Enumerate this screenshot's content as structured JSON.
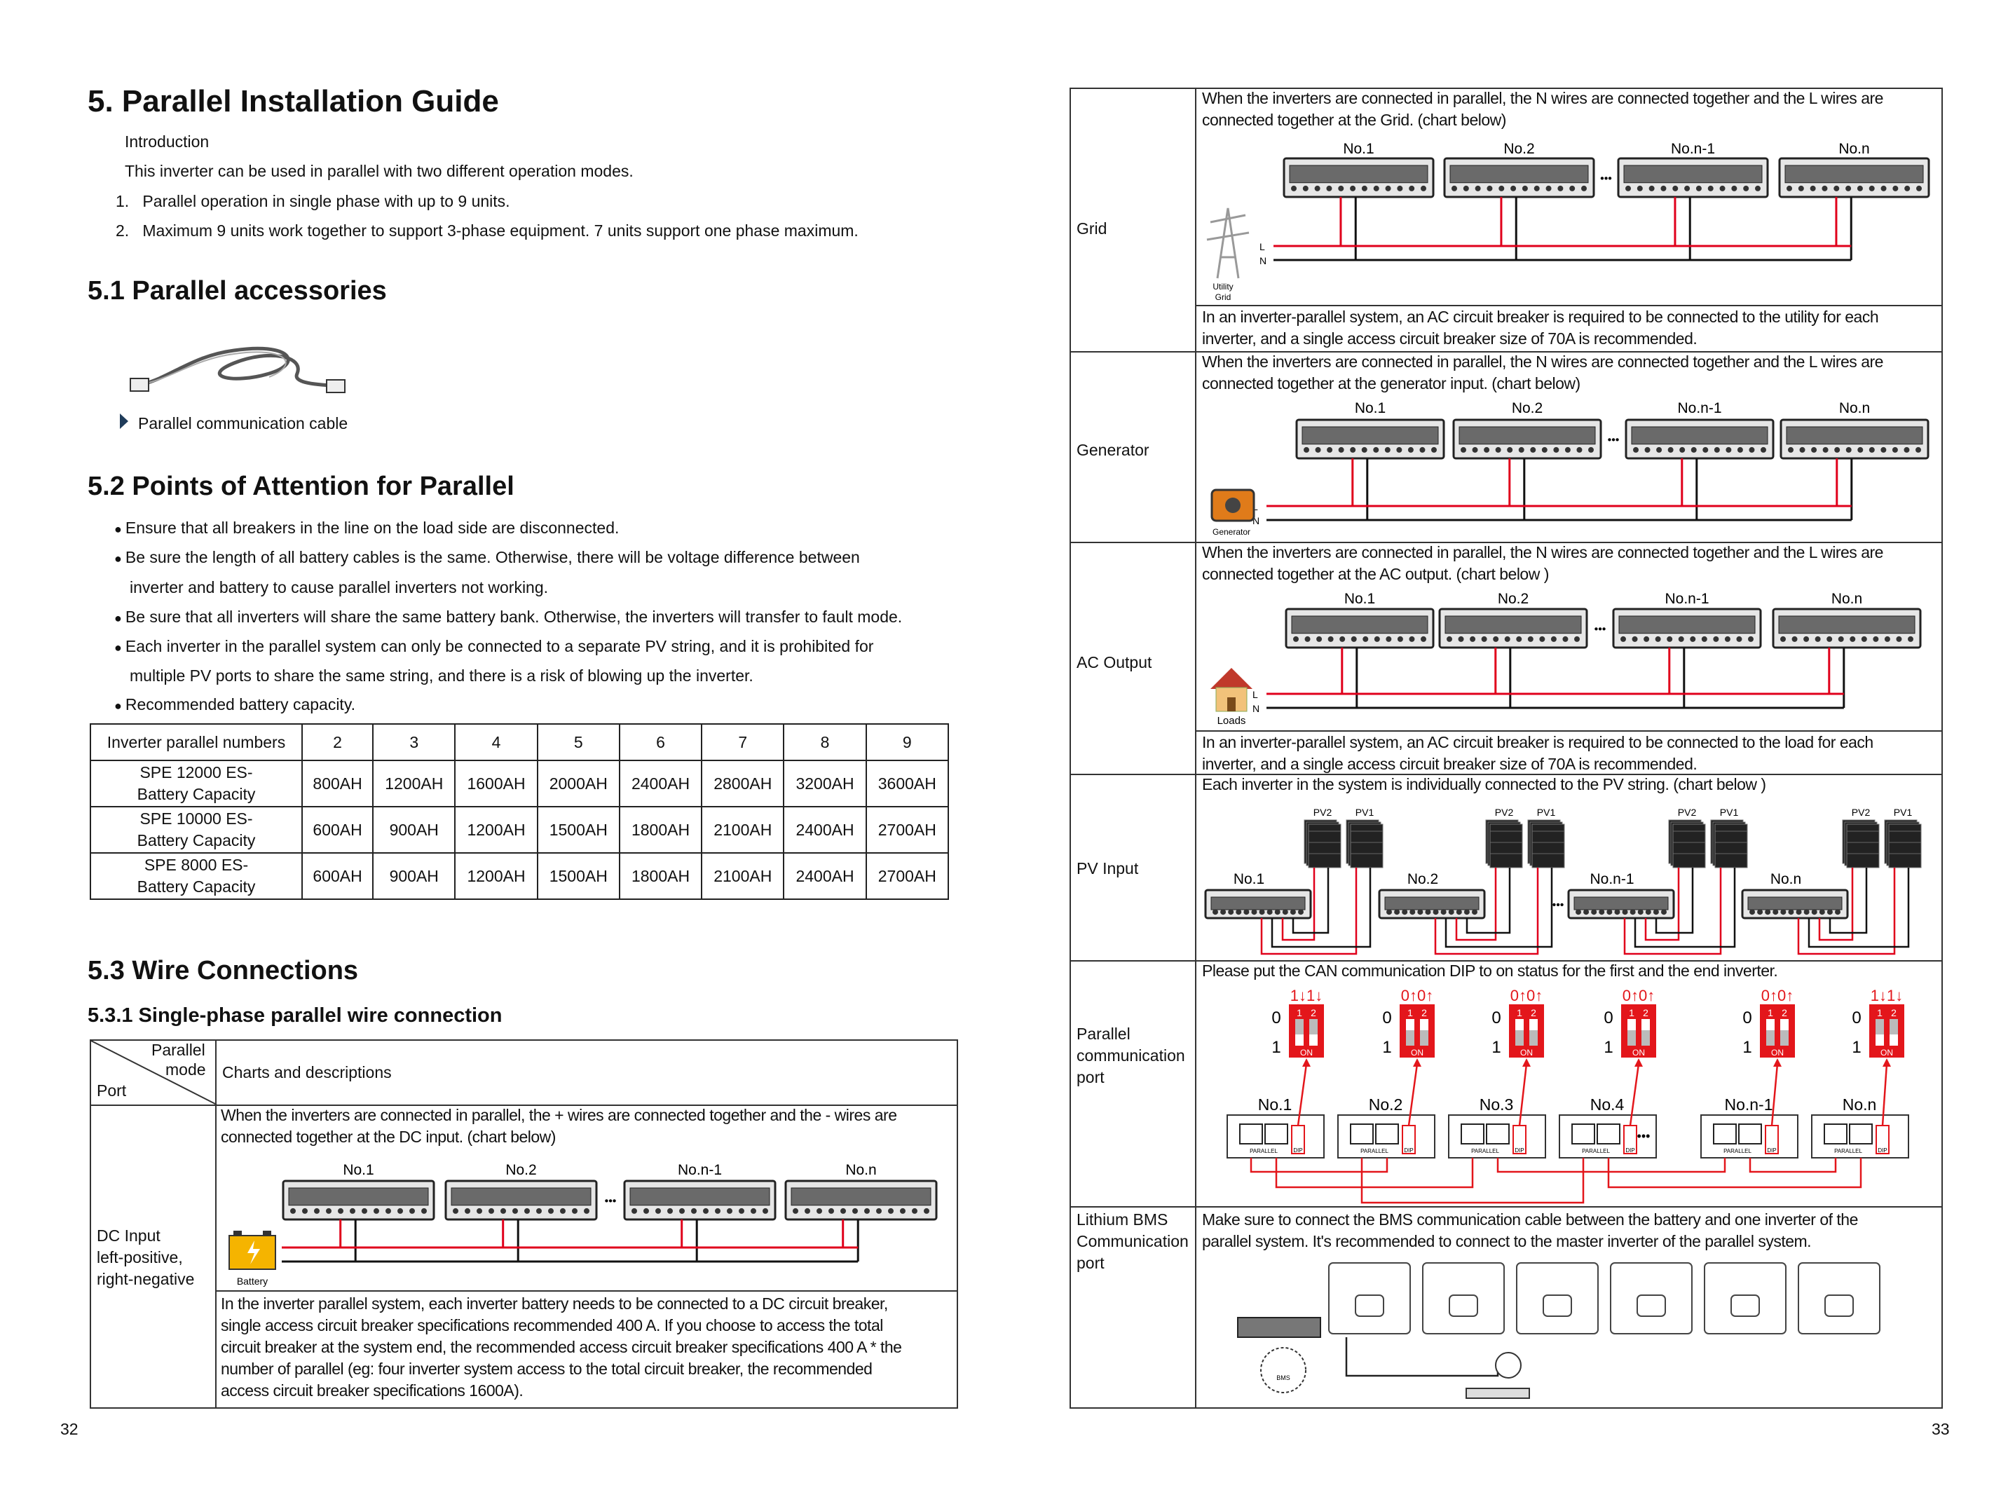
{
  "left_page": {
    "title": "5. Parallel Installation Guide",
    "intro_heading": "Introduction",
    "intro_text": "This inverter can be used in parallel with two different operation modes.",
    "modes": [
      {
        "num": "1.",
        "text": "Parallel operation in single phase with up to 9 units."
      },
      {
        "num": "2.",
        "text": "Maximum 9 units work together to support 3-phase equipment. 7 units support one phase maximum."
      }
    ],
    "s51_title": "5.1 Parallel accessories",
    "accessory_label": "Parallel communication cable",
    "s52_title": "5.2 Points of Attention for Parallel",
    "bullets": [
      "Ensure that all breakers in the line on the load side are disconnected.",
      "Be sure the length of all battery cables is the same. Otherwise, there will be voltage difference between",
      "inverter and battery to cause parallel inverters not working.",
      "Be sure that all inverters will share the same battery bank. Otherwise, the inverters will transfer to fault mode.",
      "Each inverter in the parallel system can only be connected to a separate PV string, and it is prohibited for",
      "multiple PV ports to share the same string, and there is a risk of blowing up the inverter.",
      "Recommended battery capacity."
    ],
    "capacity_table": {
      "header": [
        "Inverter parallel numbers",
        "2",
        "3",
        "4",
        "5",
        "6",
        "7",
        "8",
        "9"
      ],
      "rows": [
        {
          "model1": "SPE 12000 ES-",
          "model2": "Battery Capacity",
          "values": [
            "800AH",
            "1200AH",
            "1600AH",
            "2000AH",
            "2400AH",
            "2800AH",
            "3200AH",
            "3600AH"
          ]
        },
        {
          "model1": "SPE 10000 ES-",
          "model2": "Battery Capacity",
          "values": [
            "600AH",
            "900AH",
            "1200AH",
            "1500AH",
            "1800AH",
            "2100AH",
            "2400AH",
            "2700AH"
          ]
        },
        {
          "model1": "SPE 8000 ES-",
          "model2": "Battery Capacity",
          "values": [
            "600AH",
            "900AH",
            "1200AH",
            "1500AH",
            "1800AH",
            "2100AH",
            "2400AH",
            "2700AH"
          ]
        }
      ]
    },
    "s53_title": "5.3 Wire Connections",
    "s531_title": "5.3.1 Single-phase parallel wire connection",
    "wire_table": {
      "corner_top1": "Parallel",
      "corner_top2": "mode",
      "corner_bottom": "Port",
      "header": "Charts and descriptions",
      "dc": {
        "label": [
          "DC Input",
          "left-positive,",
          "right-negative"
        ],
        "text": [
          "When the inverters are connected in parallel, the + wires are connected together and the - wires are",
          "connected together at the DC input. (chart below)"
        ],
        "battery_label": "Battery",
        "note": [
          "In the inverter parallel system, each inverter battery needs to be connected to a DC circuit breaker,",
          "single access circuit breaker specifications recommended 400 A. If you choose to access the total",
          "circuit breaker at the system end, the recommended access circuit breaker specifications 400 A * the",
          "number of parallel (eg: four inverter system access to the total circuit breaker, the recommended",
          "access circuit breaker specifications 1600A)."
        ]
      }
    },
    "page_number": "32"
  },
  "inverter_labels": [
    "No.1",
    "No.2",
    "No.n-1",
    "No.n"
  ],
  "dots": "•••",
  "wire_letters": {
    "l": "L",
    "n": "N"
  },
  "right_page": {
    "grid": {
      "label": "Grid",
      "text": [
        "When the inverters are connected in parallel, the N wires are connected together and the L wires are",
        "connected together at the Grid. (chart below)"
      ],
      "source_label": [
        "Utility",
        "Grid"
      ],
      "note": [
        "In an inverter-parallel system, an AC circuit breaker is required to be connected to the utility for each",
        "inverter, and a single access circuit breaker size of 70A is recommended."
      ]
    },
    "generator": {
      "label": "Generator",
      "text": [
        "When the inverters are connected in parallel, the N wires are connected together and the L wires are",
        "connected together at the generator input. (chart below)"
      ],
      "source_label": "Generator"
    },
    "ac_output": {
      "label": "AC Output",
      "text": [
        "When the inverters are connected in parallel, the N wires are connected together and the L wires are",
        "connected together at the AC output. (chart below )"
      ],
      "source_label": "Loads",
      "note": [
        "In an inverter-parallel system, an AC circuit breaker is required to be connected to the load for each",
        "inverter, and a single access circuit breaker size of 70A is recommended."
      ]
    },
    "pv_input": {
      "label": "PV Input",
      "text": "Each inverter in the system is individually connected to the PV string. (chart below )",
      "pv_labels": [
        "PV2",
        "PV1"
      ]
    },
    "parallel_port": {
      "label": [
        "Parallel",
        "communication",
        "port"
      ],
      "text": "Please put the CAN communication DIP to on status for the first and the end inverter.",
      "units": [
        {
          "name": "No.1",
          "dip": "1↓1↓",
          "on": true
        },
        {
          "name": "No.2",
          "dip": "0↑0↑",
          "on": false
        },
        {
          "name": "No.3",
          "dip": "0↑0↑",
          "on": false
        },
        {
          "name": "No.4",
          "dip": "0↑0↑",
          "on": false
        },
        {
          "name": "No.n-1",
          "dip": "0↑0↑",
          "on": false
        },
        {
          "name": "No.n",
          "dip": "1↓1↓",
          "on": true
        }
      ],
      "dip_pos_labels": [
        "0",
        "1"
      ],
      "dip_switch_nums": [
        "1",
        "2"
      ],
      "dip_on": "ON",
      "port_caption": "PARALLEL",
      "dip_caption": "DIP"
    },
    "bms": {
      "label": [
        "Lithium BMS",
        "Communication",
        "port"
      ],
      "text": [
        "Make sure to connect the BMS communication cable between the battery and one inverter of the",
        "parallel system. It's recommended to connect to the master inverter of the parallel system."
      ],
      "bms_caption": "BMS"
    },
    "page_number": "33"
  },
  "colors": {
    "wire_positive": "#e0001b",
    "wire_negative": "#111111",
    "dip_red": "#e3161b",
    "text": "#111111"
  }
}
